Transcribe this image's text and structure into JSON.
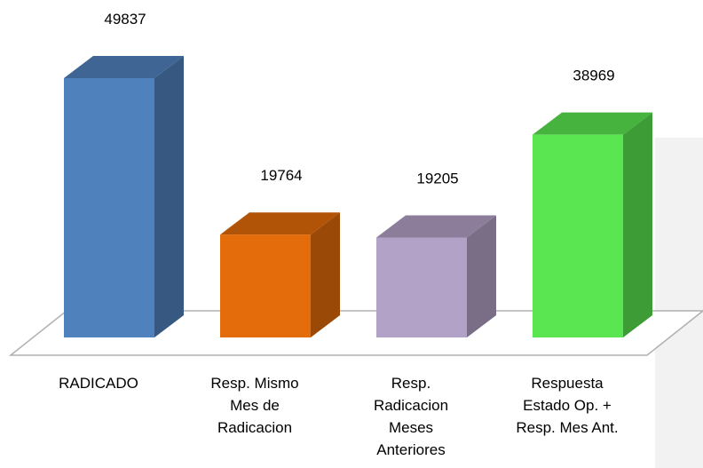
{
  "chart_data": {
    "type": "bar3d",
    "categories": [
      "RADICADO",
      "Resp. Mismo\nMes de\nRadicacion",
      "Resp.\nRadicacion\nMeses\nAnteriores",
      "Respuesta\nEstado Op. +\nResp. Mes Ant."
    ],
    "values": [
      49837,
      19764,
      19205,
      38969
    ],
    "colors": [
      "#4f81bd",
      "#e46c0a",
      "#b3a2c7",
      "#5ae650"
    ]
  }
}
